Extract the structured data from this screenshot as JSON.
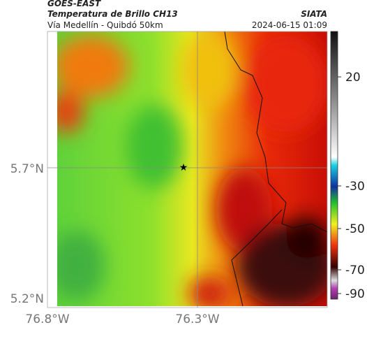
{
  "header": {
    "satellite": "GOES-EAST",
    "product": "Temperatura de Brillo CH13",
    "source": "SIATA",
    "route": "Vía Medellín - Quibdó 50km",
    "timestamp": "2024-06-15 01:09"
  },
  "axes": {
    "lat_labels": [
      "5.7°N",
      "5.2°N"
    ],
    "lon_labels": [
      "76.8°W",
      "76.3°W"
    ]
  },
  "colorbar": {
    "ticks": [
      20,
      -30,
      -50,
      -70,
      -90
    ]
  }
}
